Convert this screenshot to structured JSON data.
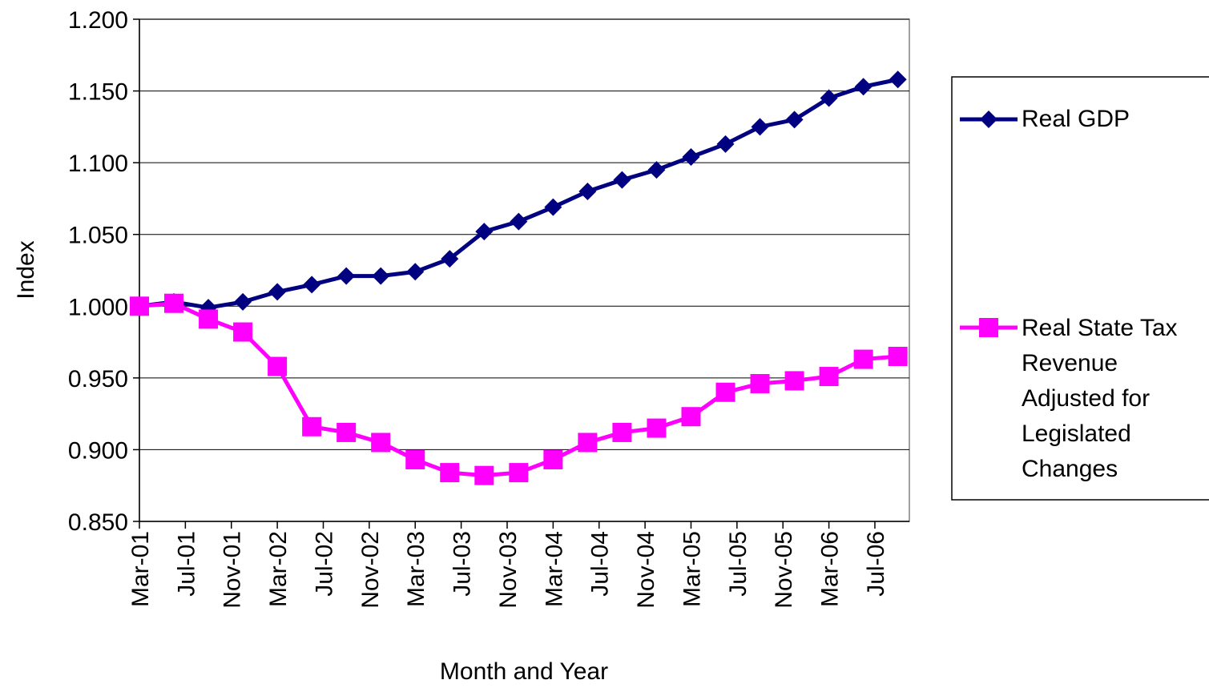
{
  "chart_data": {
    "type": "line",
    "y_label": "Index",
    "x_label": "Month and Year",
    "x": [
      "2001-03",
      "2001-06",
      "2001-09",
      "2001-12",
      "2002-03",
      "2002-06",
      "2002-09",
      "2002-12",
      "2003-03",
      "2003-06",
      "2003-09",
      "2003-12",
      "2004-03",
      "2004-06",
      "2004-09",
      "2004-12",
      "2005-03",
      "2005-06",
      "2005-09",
      "2005-12",
      "2006-03",
      "2006-06",
      "2006-09"
    ],
    "series": [
      {
        "name": "Real GDP",
        "color": "#000080",
        "marker": "diamond",
        "values": [
          1.0,
          1.003,
          0.999,
          1.003,
          1.01,
          1.015,
          1.021,
          1.021,
          1.024,
          1.033,
          1.052,
          1.059,
          1.069,
          1.08,
          1.088,
          1.095,
          1.104,
          1.113,
          1.125,
          1.13,
          1.145,
          1.153,
          1.158
        ]
      },
      {
        "name": "Real State Tax Revenue Adjusted for Legislated Changes",
        "color": "#FF00FF",
        "marker": "square",
        "values": [
          1.0,
          1.002,
          0.991,
          0.982,
          0.958,
          0.916,
          0.912,
          0.905,
          0.893,
          0.884,
          0.882,
          0.884,
          0.893,
          0.905,
          0.912,
          0.915,
          0.923,
          0.94,
          0.946,
          0.948,
          0.951,
          0.963,
          0.965
        ]
      }
    ],
    "xlim": [
      "2001-03",
      "2006-10"
    ],
    "xticks": [
      {
        "value": "2001-03",
        "label": "Mar-01"
      },
      {
        "value": "2001-07",
        "label": "Jul-01"
      },
      {
        "value": "2001-11",
        "label": "Nov-01"
      },
      {
        "value": "2002-03",
        "label": "Mar-02"
      },
      {
        "value": "2002-07",
        "label": "Jul-02"
      },
      {
        "value": "2002-11",
        "label": "Nov-02"
      },
      {
        "value": "2003-03",
        "label": "Mar-03"
      },
      {
        "value": "2003-07",
        "label": "Jul-03"
      },
      {
        "value": "2003-11",
        "label": "Nov-03"
      },
      {
        "value": "2004-03",
        "label": "Mar-04"
      },
      {
        "value": "2004-07",
        "label": "Jul-04"
      },
      {
        "value": "2004-11",
        "label": "Nov-04"
      },
      {
        "value": "2005-03",
        "label": "Mar-05"
      },
      {
        "value": "2005-07",
        "label": "Jul-05"
      },
      {
        "value": "2005-11",
        "label": "Nov-05"
      },
      {
        "value": "2006-03",
        "label": "Mar-06"
      },
      {
        "value": "2006-07",
        "label": "Jul-06"
      }
    ],
    "ylim": [
      0.85,
      1.2
    ],
    "yticks": [
      {
        "value": 0.85,
        "label": "0.850"
      },
      {
        "value": 0.9,
        "label": "0.900"
      },
      {
        "value": 0.95,
        "label": "0.950"
      },
      {
        "value": 1.0,
        "label": "1.000"
      },
      {
        "value": 1.05,
        "label": "1.050"
      },
      {
        "value": 1.1,
        "label": "1.100"
      },
      {
        "value": 1.15,
        "label": "1.150"
      },
      {
        "value": 1.2,
        "label": "1.200"
      }
    ],
    "grid": true,
    "legend": "right"
  }
}
